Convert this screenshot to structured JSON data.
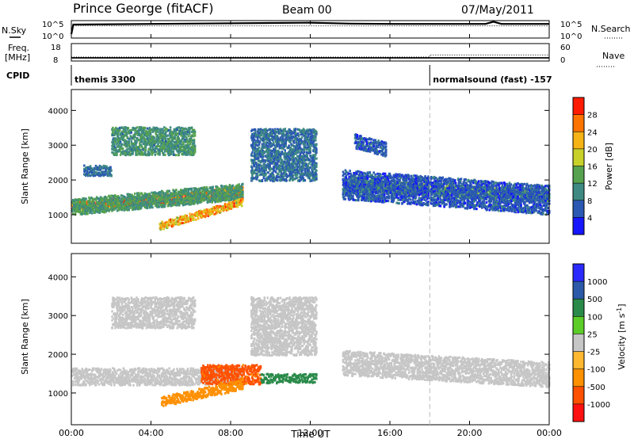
{
  "header": {
    "title": "Prince George (fitACF)",
    "beam": "Beam 00",
    "date": "07/May/2011"
  },
  "top_panels": {
    "nsky_label": "N.Sky",
    "nsearch_label": "N.Search",
    "nsky_ticks": [
      "10^5",
      "10^0"
    ],
    "nsky_right_ticks": [
      "10^5",
      "10^0"
    ],
    "freq_label": "Freq.",
    "freq_unit": "[MHz]",
    "freq_ticks": [
      "18",
      "8"
    ],
    "nave_ticks": [
      "60",
      "0"
    ],
    "nave_label": "Nave",
    "cpid_label": "CPID",
    "cpid_segments": [
      {
        "start_hour": 0,
        "label": "themis 3300"
      },
      {
        "start_hour": 18,
        "label": "normalsound (fast) -157"
      }
    ]
  },
  "chart_data": [
    {
      "type": "heatmap",
      "name": "power",
      "xlabel": "",
      "ylabel": "Slant Range [km]",
      "xlim": [
        0,
        24
      ],
      "ylim": [
        180,
        4600
      ],
      "y_ticks": [
        1000,
        2000,
        3000,
        4000
      ],
      "colorbar": {
        "label": "Power [dB]",
        "ticks": [
          "4",
          "8",
          "12",
          "16",
          "20",
          "24",
          "28"
        ],
        "bin_edges": [
          0,
          4,
          8,
          12,
          16,
          20,
          24,
          28,
          32
        ],
        "colors": [
          "#1616ff",
          "#2a58b2",
          "#3e8a82",
          "#56a24e",
          "#c8d02a",
          "#f5b316",
          "#ff7300",
          "#ff1b00"
        ]
      },
      "echo_regions": [
        {
          "t": [
            0.0,
            8.6
          ],
          "r_center": [
            1250,
            1700
          ],
          "half_width": 130,
          "value": 26
        },
        {
          "t": [
            0.0,
            8.6
          ],
          "r_center": [
            1250,
            1700
          ],
          "half_width": 230,
          "value": 12
        },
        {
          "t": [
            4.4,
            8.6
          ],
          "r_center": [
            700,
            1400
          ],
          "half_width": 110,
          "value": 22
        },
        {
          "t": [
            2.0,
            6.2
          ],
          "r_center": [
            3150,
            3150
          ],
          "half_width": 400,
          "value": 11
        },
        {
          "t": [
            0.6,
            2.0
          ],
          "r_center": [
            2300,
            2300
          ],
          "half_width": 150,
          "value": 8
        },
        {
          "t": [
            9.0,
            12.3
          ],
          "r_center": [
            2750,
            2750
          ],
          "half_width": 750,
          "value": 8
        },
        {
          "t": [
            13.6,
            24.0
          ],
          "r_center": [
            1900,
            1550
          ],
          "half_width": 170,
          "value": 13
        },
        {
          "t": [
            13.6,
            24.0
          ],
          "r_center": [
            1900,
            1450
          ],
          "half_width": 420,
          "value": 6
        },
        {
          "t": [
            14.2,
            15.8
          ],
          "r_center": [
            3150,
            2900
          ],
          "half_width": 200,
          "value": 6
        }
      ]
    },
    {
      "type": "heatmap",
      "name": "velocity",
      "xlabel": "Time UT",
      "ylabel": "Slant Range [km]",
      "xlim": [
        0,
        24
      ],
      "ylim": [
        180,
        4600
      ],
      "y_ticks": [
        1000,
        2000,
        3000,
        4000
      ],
      "x_ticks": [
        "00:00",
        "04:00",
        "08:00",
        "12:00",
        "16:00",
        "20:00",
        "00:00"
      ],
      "colorbar": {
        "label": "Velocity [m s^-1]",
        "ticks": [
          "1000",
          "500",
          "100",
          "25",
          "-25",
          "-100",
          "-500",
          "-1000"
        ],
        "bin_edges": [
          -1200,
          -1000,
          -500,
          -100,
          -25,
          25,
          100,
          500,
          1000,
          1200
        ],
        "colors": [
          "#ff1010",
          "#ff5000",
          "#ff9000",
          "#ffb830",
          "#c6c6c6",
          "#5ccc28",
          "#2a8a4a",
          "#2c5aa8",
          "#2a2aff"
        ]
      },
      "echo_regions": [
        {
          "t": [
            0.0,
            8.6
          ],
          "r_center": [
            1450,
            1450
          ],
          "half_width": 220,
          "value": 0
        },
        {
          "t": [
            6.5,
            9.5
          ],
          "r_center": [
            1500,
            1500
          ],
          "half_width": 250,
          "value": -700
        },
        {
          "t": [
            4.5,
            8.6
          ],
          "r_center": [
            800,
            1250
          ],
          "half_width": 130,
          "value": -300
        },
        {
          "t": [
            9.5,
            12.3
          ],
          "r_center": [
            1400,
            1400
          ],
          "half_width": 120,
          "value": 200
        },
        {
          "t": [
            2.0,
            6.2
          ],
          "r_center": [
            3100,
            3100
          ],
          "half_width": 400,
          "value": 0
        },
        {
          "t": [
            9.0,
            12.3
          ],
          "r_center": [
            2750,
            2750
          ],
          "half_width": 750,
          "value": 0
        },
        {
          "t": [
            13.6,
            24.0
          ],
          "r_center": [
            1800,
            1500
          ],
          "half_width": 320,
          "value": 0
        }
      ]
    }
  ],
  "lines": {
    "nsky": [
      [
        0.0,
        1
      ],
      [
        0.1,
        4.0
      ],
      [
        4,
        4.2
      ],
      [
        10,
        4.5
      ],
      [
        12,
        4.6
      ],
      [
        14,
        4.3
      ],
      [
        16,
        4.2
      ],
      [
        20.8,
        4.2
      ],
      [
        21.2,
        4.9
      ],
      [
        21.6,
        4.2
      ],
      [
        24,
        4.2
      ]
    ],
    "nsearch": [
      [
        0.1,
        3.6
      ],
      [
        24,
        3.6
      ]
    ],
    "freq": [
      [
        0,
        9.5
      ],
      [
        24,
        9.5
      ]
    ],
    "nave": [
      [
        0,
        12
      ],
      [
        18,
        12
      ],
      [
        18,
        20
      ],
      [
        24,
        20
      ]
    ]
  }
}
